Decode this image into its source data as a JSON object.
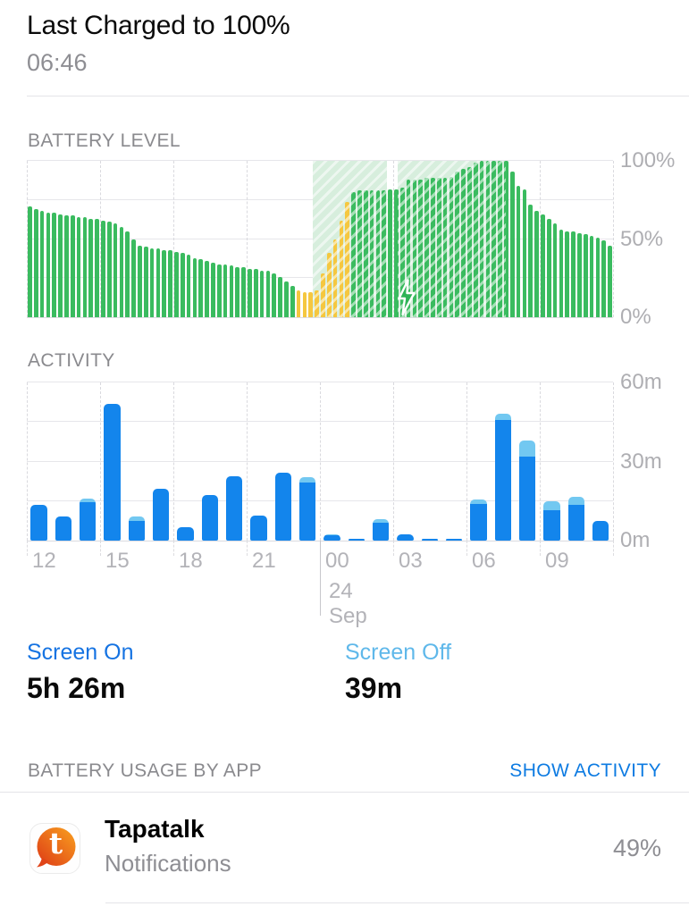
{
  "header": {
    "title": "Last Charged to 100%",
    "subtitle": "06:46"
  },
  "stats": {
    "screen_on": {
      "label": "Screen On",
      "value": "5h 26m"
    },
    "screen_off": {
      "label": "Screen Off",
      "value": "39m"
    }
  },
  "usage_section": {
    "label": "BATTERY USAGE BY APP",
    "action_label": "SHOW ACTIVITY",
    "apps": [
      {
        "name": "Tapatalk",
        "subtitle": "Notifications",
        "percent": "49%",
        "icon_letter": "t",
        "icon_name": "tapatalk-app-icon"
      }
    ]
  },
  "chart_data": [
    {
      "type": "bar",
      "title": "BATTERY LEVEL",
      "unit": "percent",
      "interval_minutes": 15,
      "x_start": "12:00",
      "ylim": [
        0,
        100
      ],
      "gridline_step_percent": 25,
      "y_tick_labels": [
        "100%",
        "50%",
        "0%"
      ],
      "y_tick_values": [
        100,
        50,
        0
      ],
      "x_tick_labels": [
        "12",
        "15",
        "18",
        "21",
        "00",
        "03",
        "06",
        "09"
      ],
      "x_tick_hours": [
        0,
        3,
        6,
        9,
        12,
        15,
        18,
        21
      ],
      "date_label": "24 Sep",
      "values": [
        71,
        69,
        68,
        67,
        67,
        66,
        65,
        65,
        64,
        64,
        63,
        63,
        62,
        61,
        60,
        58,
        55,
        50,
        46,
        45,
        44,
        44,
        43,
        43,
        42,
        41,
        40,
        38,
        37,
        36,
        35,
        34,
        34,
        33,
        32,
        32,
        31,
        31,
        30,
        30,
        28,
        26,
        23,
        20,
        17,
        16,
        16,
        17,
        28,
        41,
        50,
        62,
        74,
        80,
        81,
        81,
        81,
        81,
        81,
        82,
        82,
        83,
        88,
        88,
        88,
        89,
        89,
        89,
        89,
        90,
        93,
        95,
        96,
        99,
        100,
        100,
        100,
        100,
        100,
        93,
        84,
        82,
        72,
        68,
        66,
        63,
        60,
        56,
        55,
        55,
        54,
        53,
        52,
        51,
        49,
        46
      ],
      "yellow_bar_range": [
        44,
        52
      ],
      "yellow_meaning": "low-power-mode",
      "charging_regions_hours": [
        [
          11.71,
          14.75
        ],
        [
          15.2,
          19.6
        ]
      ],
      "bolt_icon": {
        "hour": 15.55,
        "percent": 12.5
      }
    },
    {
      "type": "stacked-bar",
      "title": "ACTIVITY",
      "unit": "minutes",
      "categories": [
        "12",
        "13",
        "14",
        "15",
        "16",
        "17",
        "18",
        "19",
        "20",
        "21",
        "22",
        "23",
        "00",
        "01",
        "02",
        "03",
        "04",
        "05",
        "06",
        "07",
        "08",
        "09",
        "10",
        "11"
      ],
      "series": [
        {
          "name": "Screen On",
          "color_key": "blue",
          "values": [
            13.5,
            9,
            14.5,
            52,
            7.5,
            19.5,
            5.1,
            17.3,
            24.5,
            9.6,
            25.6,
            22.2,
            2,
            0.8,
            6.8,
            2.5,
            0.8,
            0.8,
            13.8,
            45.7,
            31.8,
            11.5,
            13.5,
            7.3
          ]
        },
        {
          "name": "Screen Off",
          "color_key": "light_blue",
          "values": [
            0,
            0,
            1.5,
            0,
            1.7,
            0,
            0,
            0,
            0,
            0,
            0,
            1.8,
            0.4,
            0,
            1.3,
            0,
            0,
            0,
            1.8,
            2.6,
            6.3,
            3.4,
            3.1,
            0
          ]
        }
      ],
      "ylim": [
        0,
        60
      ],
      "gridline_step_minutes": 15,
      "y_tick_labels": [
        "60m",
        "30m",
        "0m"
      ],
      "y_tick_values": [
        60,
        30,
        0
      ],
      "x_tick_labels": [
        "12",
        "15",
        "18",
        "21",
        "00",
        "03",
        "06",
        "09"
      ],
      "x_tick_hours": [
        0,
        3,
        6,
        9,
        12,
        15,
        18,
        21
      ],
      "date_label": "24 Sep"
    }
  ],
  "colors": {
    "green": "#3abb5f",
    "yellow": "#f5c73f",
    "blue": "#1385ec",
    "light_blue": "#72c8f1",
    "screen_on_blue": "#1573e2",
    "screen_off_blue": "#5fb8ea",
    "link_blue": "#0d7be2",
    "value_black": "#0a0a0a",
    "gray_text": "#8e8e93",
    "bolt_green": "#2eb356"
  }
}
